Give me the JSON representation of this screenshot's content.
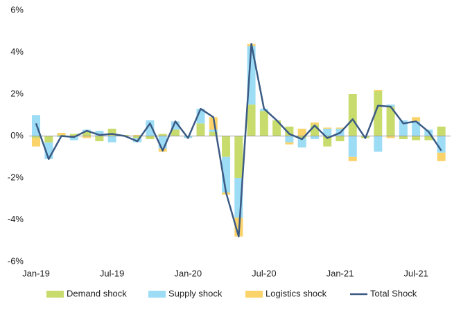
{
  "chart_data": {
    "type": "stacked_bar_line",
    "categories": [
      "Jan-19",
      null,
      null,
      null,
      null,
      null,
      "Jul-19",
      null,
      null,
      null,
      null,
      null,
      "Jan-20",
      null,
      null,
      null,
      null,
      null,
      "Jul-20",
      null,
      null,
      null,
      null,
      null,
      "Jan-21",
      null,
      null,
      null,
      null,
      null,
      "Jul-21",
      null,
      null
    ],
    "series": [
      {
        "name": "Demand shock",
        "color": "#c8dc6e",
        "kind": "bar",
        "values": [
          -0.1,
          -0.3,
          0.05,
          0.1,
          0.2,
          -0.25,
          0.35,
          0.05,
          -0.1,
          -0.15,
          0.1,
          0.3,
          0,
          0.6,
          0.2,
          -1.0,
          -2.0,
          1.5,
          1.2,
          0.75,
          0.45,
          -0.1,
          0.55,
          -0.5,
          -0.25,
          2.0,
          -0.1,
          2.15,
          1.4,
          -0.15,
          -0.2,
          -0.2,
          0.45
        ]
      },
      {
        "name": "Supply shock",
        "color": "#9ddcf5",
        "kind": "bar",
        "values": [
          1.0,
          -0.8,
          -0.05,
          -0.2,
          0.1,
          0.25,
          -0.3,
          0,
          -0.2,
          0.75,
          -0.6,
          0.4,
          -0.1,
          0.7,
          0.1,
          -1.7,
          -1.9,
          2.8,
          0.1,
          0,
          -0.3,
          -0.45,
          -0.15,
          0.35,
          0.35,
          -1.0,
          0,
          -0.75,
          0.1,
          0.75,
          0.7,
          0.3,
          -0.8
        ]
      },
      {
        "name": "Logistics shock",
        "color": "#fbd36b",
        "kind": "bar",
        "values": [
          -0.4,
          0,
          0.1,
          0,
          -0.1,
          0,
          0,
          0,
          0.05,
          0,
          -0.15,
          0,
          0,
          0,
          0.6,
          -0.1,
          -0.9,
          0.1,
          0,
          0,
          -0.1,
          0.35,
          0.1,
          0.05,
          0.05,
          -0.2,
          0,
          0.05,
          -0.1,
          0,
          0.2,
          0,
          -0.4
        ]
      },
      {
        "name": "Total Shock",
        "color": "#3b5a84",
        "kind": "line",
        "values": [
          0.6,
          -1.1,
          0,
          -0.05,
          0.25,
          0.05,
          0.1,
          0,
          -0.25,
          0.6,
          -0.7,
          0.7,
          -0.1,
          1.3,
          0.9,
          -2.7,
          -4.8,
          4.4,
          1.3,
          0.75,
          0.1,
          -0.15,
          0.5,
          -0.1,
          0.15,
          0.8,
          -0.1,
          1.45,
          1.4,
          0.6,
          0.7,
          0.2,
          -0.7
        ]
      }
    ],
    "ylim": [
      -6,
      6
    ],
    "yticks": [
      {
        "value": -6,
        "label": "-6%"
      },
      {
        "value": -4,
        "label": "-4%"
      },
      {
        "value": -2,
        "label": "-2%"
      },
      {
        "value": 0,
        "label": "0%"
      },
      {
        "value": 2,
        "label": "2%"
      },
      {
        "value": 4,
        "label": "4%"
      },
      {
        "value": 6,
        "label": "6%"
      }
    ],
    "legend": "bottom"
  }
}
